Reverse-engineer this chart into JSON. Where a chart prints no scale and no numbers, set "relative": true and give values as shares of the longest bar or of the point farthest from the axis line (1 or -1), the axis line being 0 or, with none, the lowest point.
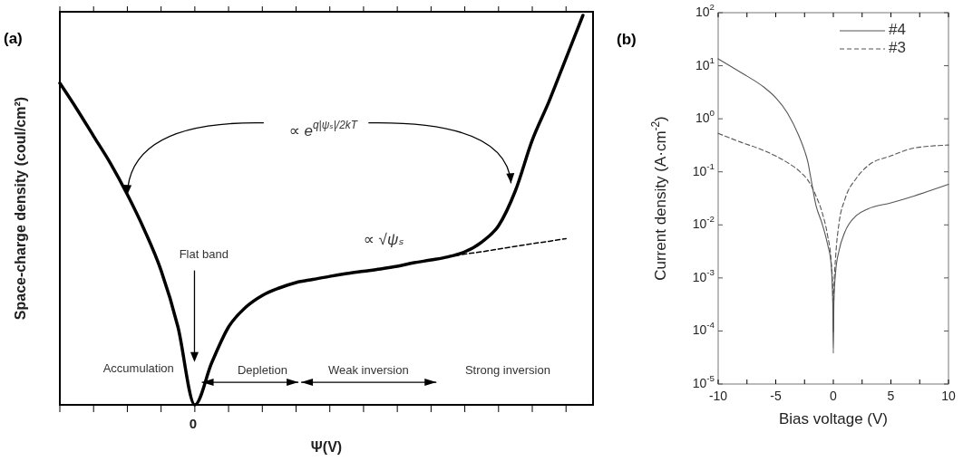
{
  "chart_data": [
    {
      "type": "line",
      "xlabel": "Ψ(V)",
      "ylabel": "Space-charge density (coul/cm²)",
      "relative": true,
      "categories": [
        null,
        null,
        null,
        null,
        null,
        null,
        null,
        null,
        null,
        null,
        null,
        null,
        null,
        null,
        null,
        null,
        null,
        null,
        null,
        null,
        null,
        null,
        null,
        null,
        null,
        null,
        null,
        null,
        null,
        null,
        null,
        null
      ],
      "series": [
        {
          "color": "#000000",
          "line_style": "solid",
          "values": [
            0.826,
            0.76,
            0.69,
            0.62,
            0.54,
            0.45,
            0.345,
            0.2,
            0,
            0.108,
            0.2,
            0.25,
            0.281,
            0.3,
            0.314,
            0.322,
            0.33,
            0.337,
            0.343,
            0.349,
            0.356,
            0.365,
            0.372,
            0.38,
            0.393,
            0.418,
            0.46,
            0.55,
            0.68,
            0.78,
            0.89,
            1
          ]
        },
        {
          "color": "#000000",
          "line_style": "dashed",
          "values": [
            null,
            null,
            null,
            null,
            null,
            null,
            null,
            null,
            null,
            null,
            null,
            null,
            null,
            null,
            null,
            null,
            null,
            null,
            null,
            null,
            null,
            null,
            null,
            0.38,
            0.387,
            0.393,
            0.4,
            0.407,
            0.414,
            0.42,
            0.427,
            null
          ]
        }
      ],
      "annotations": [
        "(a)",
        "0",
        "∝ e$^{q|ψₛ|/2kT}$",
        "∝ √ψₛ",
        "Flat band",
        "Accumulation",
        "Depletion",
        "Weak inversion",
        "Strong inversion"
      ]
    },
    {
      "type": "line",
      "xlabel": "Bias voltage (V)",
      "ylabel": "Current density (A·cm$^{-2}$)",
      "log": "y",
      "legend": "top right",
      "xlim": [
        -10,
        10
      ],
      "xticks": [
        -10,
        {
          "value": -7.5,
          "label": null
        },
        -5,
        {
          "value": -2.5,
          "label": null
        },
        0,
        {
          "value": 2.5,
          "label": null
        },
        5,
        {
          "value": 7.5,
          "label": null
        },
        10
      ],
      "ylim": [
        1e-05,
        100
      ],
      "yticks": [
        {
          "value": 1e-05,
          "label": "10$^{-5}$"
        },
        {
          "value": 0.0001,
          "label": "10$^{-4}$"
        },
        {
          "value": 0.001,
          "label": "10$^{-3}$"
        },
        {
          "value": 0.01,
          "label": "10$^{-2}$"
        },
        {
          "value": 0.1,
          "label": "10$^{-1}$"
        },
        {
          "value": 1,
          "label": "10$^{0}$"
        },
        {
          "value": 10,
          "label": "10$^{1}$"
        },
        {
          "value": 100,
          "label": "10$^{2}$"
        }
      ],
      "series": [
        {
          "name": "#4",
          "color": "#555555",
          "line_style": "solid",
          "x": [
            -10,
            -8,
            -6,
            -5,
            -4,
            -3,
            -2.5,
            -2.2,
            -2,
            -1.5,
            -1,
            -0.5,
            -0.2,
            -0.05,
            0,
            0.05,
            0.2,
            0.5,
            1,
            2,
            3,
            5,
            7,
            10
          ],
          "values": [
            13.5,
            7.4,
            3.9,
            2.5,
            1.3,
            0.48,
            0.25,
            0.15,
            0.087,
            0.023,
            0.011,
            0.0043,
            0.0019,
            0.00035,
            3.8e-05,
            0.00035,
            0.0013,
            0.0033,
            0.0073,
            0.015,
            0.02,
            0.026,
            0.035,
            0.058
          ]
        },
        {
          "name": "#3",
          "color": "#555555",
          "line_style": "dashed",
          "x": [
            -10,
            -8,
            -6,
            -4,
            -3,
            -2,
            -1.5,
            -1,
            -0.5,
            -0.2,
            -0.05,
            0,
            0.05,
            0.2,
            0.5,
            1,
            2,
            3,
            5,
            7,
            10
          ],
          "values": [
            0.53,
            0.36,
            0.25,
            0.15,
            0.105,
            0.059,
            0.035,
            0.018,
            0.0063,
            0.0022,
            0.0006,
            9.5e-05,
            0.0006,
            0.0025,
            0.011,
            0.03,
            0.076,
            0.13,
            0.2,
            0.28,
            0.32
          ]
        }
      ],
      "annotations": [
        "(b)"
      ]
    }
  ]
}
